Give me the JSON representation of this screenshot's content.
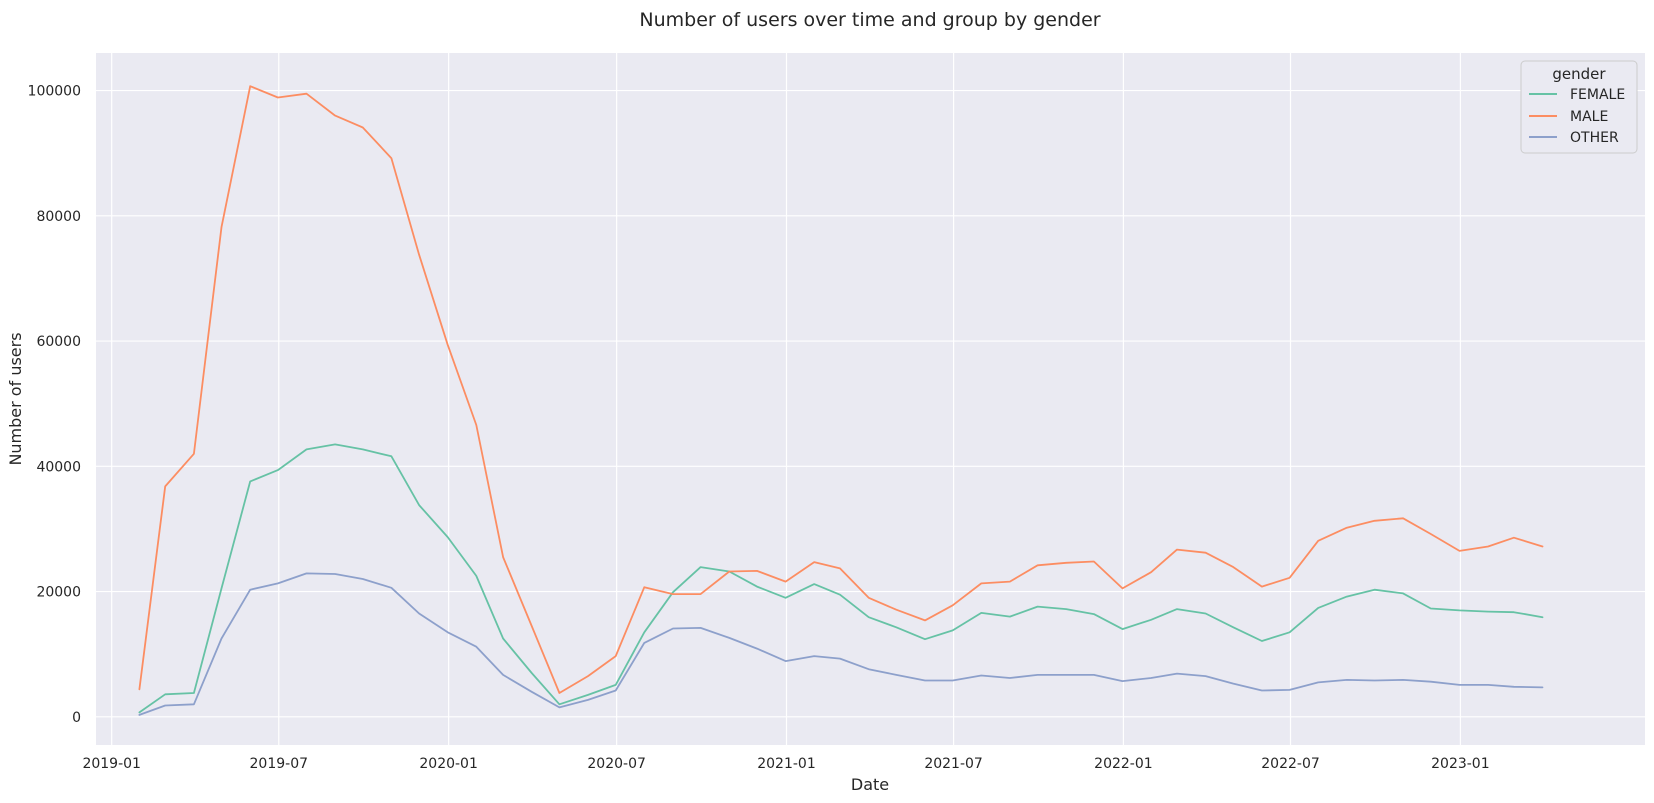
{
  "chart_data": {
    "type": "line",
    "title": "Number of users over time and group by gender",
    "xlabel": "Date",
    "ylabel": "Number of users",
    "xlim": [
      "2018-12-15",
      "2023-07-20"
    ],
    "ylim": [
      -4500,
      106000
    ],
    "x_ticks": [
      "2019-01",
      "2019-07",
      "2020-01",
      "2020-07",
      "2021-01",
      "2021-07",
      "2022-01",
      "2022-07",
      "2023-01"
    ],
    "y_ticks": [
      0,
      20000,
      40000,
      60000,
      80000,
      100000
    ],
    "grid": true,
    "legend": {
      "title": "gender",
      "position": "top-right"
    },
    "x": [
      "2019-01-31",
      "2019-02-28",
      "2019-03-31",
      "2019-04-30",
      "2019-05-31",
      "2019-06-30",
      "2019-07-31",
      "2019-08-31",
      "2019-09-30",
      "2019-10-31",
      "2019-11-30",
      "2019-12-31",
      "2020-01-31",
      "2020-02-29",
      "2020-03-31",
      "2020-04-30",
      "2020-05-31",
      "2020-06-30",
      "2020-07-31",
      "2020-08-31",
      "2020-09-30",
      "2020-10-31",
      "2020-11-30",
      "2020-12-31",
      "2021-01-31",
      "2021-02-28",
      "2021-03-31",
      "2021-04-30",
      "2021-05-31",
      "2021-06-30",
      "2021-07-31",
      "2021-08-31",
      "2021-09-30",
      "2021-10-31",
      "2021-11-30",
      "2021-12-31",
      "2022-01-31",
      "2022-02-28",
      "2022-03-31",
      "2022-04-30",
      "2022-05-31",
      "2022-06-30",
      "2022-07-31",
      "2022-08-31",
      "2022-09-30",
      "2022-10-31",
      "2022-11-30",
      "2022-12-31",
      "2023-01-31",
      "2023-02-28",
      "2023-03-31"
    ],
    "series": [
      {
        "name": "FEMALE",
        "color": "#66c2a5",
        "values": [
          700,
          3600,
          3800,
          20500,
          37600,
          39400,
          42700,
          43500,
          42700,
          41600,
          33800,
          28700,
          22500,
          12500,
          7000,
          2000,
          3500,
          5100,
          13500,
          19900,
          23900,
          23200,
          20800,
          19000,
          21200,
          19500,
          15900,
          14300,
          12400,
          13800,
          16600,
          16000,
          17600,
          17200,
          16400,
          14000,
          15500,
          17200,
          16500,
          14300,
          12100,
          13500,
          17400,
          19200,
          20300,
          19700,
          17300,
          17000,
          16800,
          16700,
          15900
        ]
      },
      {
        "name": "MALE",
        "color": "#fc8d62",
        "values": [
          4400,
          36800,
          42000,
          78200,
          100700,
          98900,
          99500,
          96000,
          94100,
          89200,
          73800,
          59400,
          46600,
          25500,
          14500,
          3800,
          6500,
          9700,
          20700,
          19600,
          19600,
          23200,
          23300,
          21600,
          24700,
          23700,
          19000,
          17100,
          15400,
          17800,
          21300,
          21600,
          24200,
          24600,
          24800,
          20500,
          23100,
          26700,
          26200,
          23900,
          20800,
          22200,
          28100,
          30200,
          31300,
          31700,
          29200,
          26500,
          27200,
          28600,
          27200
        ]
      },
      {
        "name": "OTHER",
        "color": "#8da0cb",
        "values": [
          300,
          1800,
          2000,
          12500,
          20300,
          21300,
          22900,
          22800,
          22000,
          20600,
          16500,
          13500,
          11200,
          6700,
          4000,
          1500,
          2700,
          4200,
          11800,
          14100,
          14200,
          12600,
          10900,
          8900,
          9700,
          9300,
          7600,
          6700,
          5800,
          5800,
          6600,
          6200,
          6700,
          6700,
          6700,
          5700,
          6200,
          6900,
          6500,
          5300,
          4200,
          4300,
          5500,
          5900,
          5800,
          5900,
          5600,
          5100,
          5100,
          4800,
          4700
        ]
      }
    ]
  }
}
